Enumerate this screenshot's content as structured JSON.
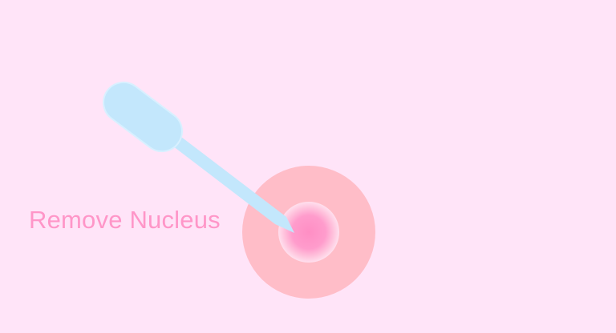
{
  "step": {
    "label": "Remove Nucleus"
  },
  "colors": {
    "background": "#ffe4f8",
    "cell": "#ffbdc8",
    "nucleus": "#ff9ccc",
    "nucleus_halo": "#ffe0ee",
    "pipette": "#c3e7fc",
    "label": "#ff96c8"
  },
  "parts": {
    "cell": "egg-cell",
    "nucleus": "nucleus",
    "tool": "micropipette"
  }
}
